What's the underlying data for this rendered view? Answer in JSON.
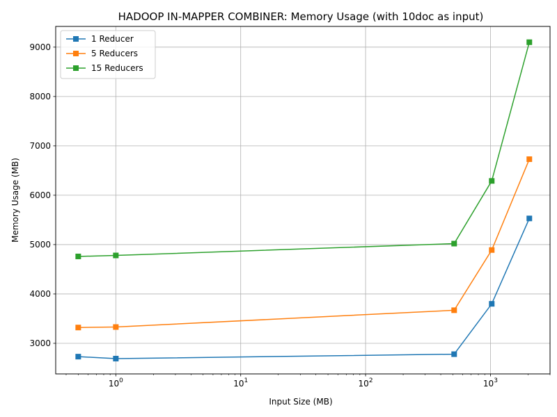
{
  "chart_data": {
    "type": "line",
    "title": "HADOOP IN-MAPPER COMBINER: Memory Usage (with 10doc as input)",
    "xlabel": "Input Size (MB)",
    "ylabel": "Memory Usage (MB)",
    "xscale": "log",
    "xlim": [
      0.33,
      3000
    ],
    "ylim": [
      2380,
      9420
    ],
    "grid": true,
    "legend_position": "upper-left",
    "x": [
      0.5,
      1,
      512,
      1024,
      2048
    ],
    "x_ticks": [
      1,
      10,
      100,
      1000
    ],
    "x_tick_labels": [
      {
        "base": "10",
        "exp": "0"
      },
      {
        "base": "10",
        "exp": "1"
      },
      {
        "base": "10",
        "exp": "2"
      },
      {
        "base": "10",
        "exp": "3"
      }
    ],
    "y_ticks": [
      3000,
      4000,
      5000,
      6000,
      7000,
      8000,
      9000
    ],
    "series": [
      {
        "name": "1 Reducer",
        "color": "#1f77b4",
        "marker": "square",
        "values": [
          2730,
          2690,
          2780,
          3800,
          5530
        ]
      },
      {
        "name": "5 Reducers",
        "color": "#ff7f0e",
        "marker": "square",
        "values": [
          3320,
          3330,
          3670,
          4890,
          6730
        ]
      },
      {
        "name": "15 Reducers",
        "color": "#2ca02c",
        "marker": "square",
        "values": [
          4760,
          4780,
          5020,
          6290,
          9100
        ]
      }
    ]
  }
}
